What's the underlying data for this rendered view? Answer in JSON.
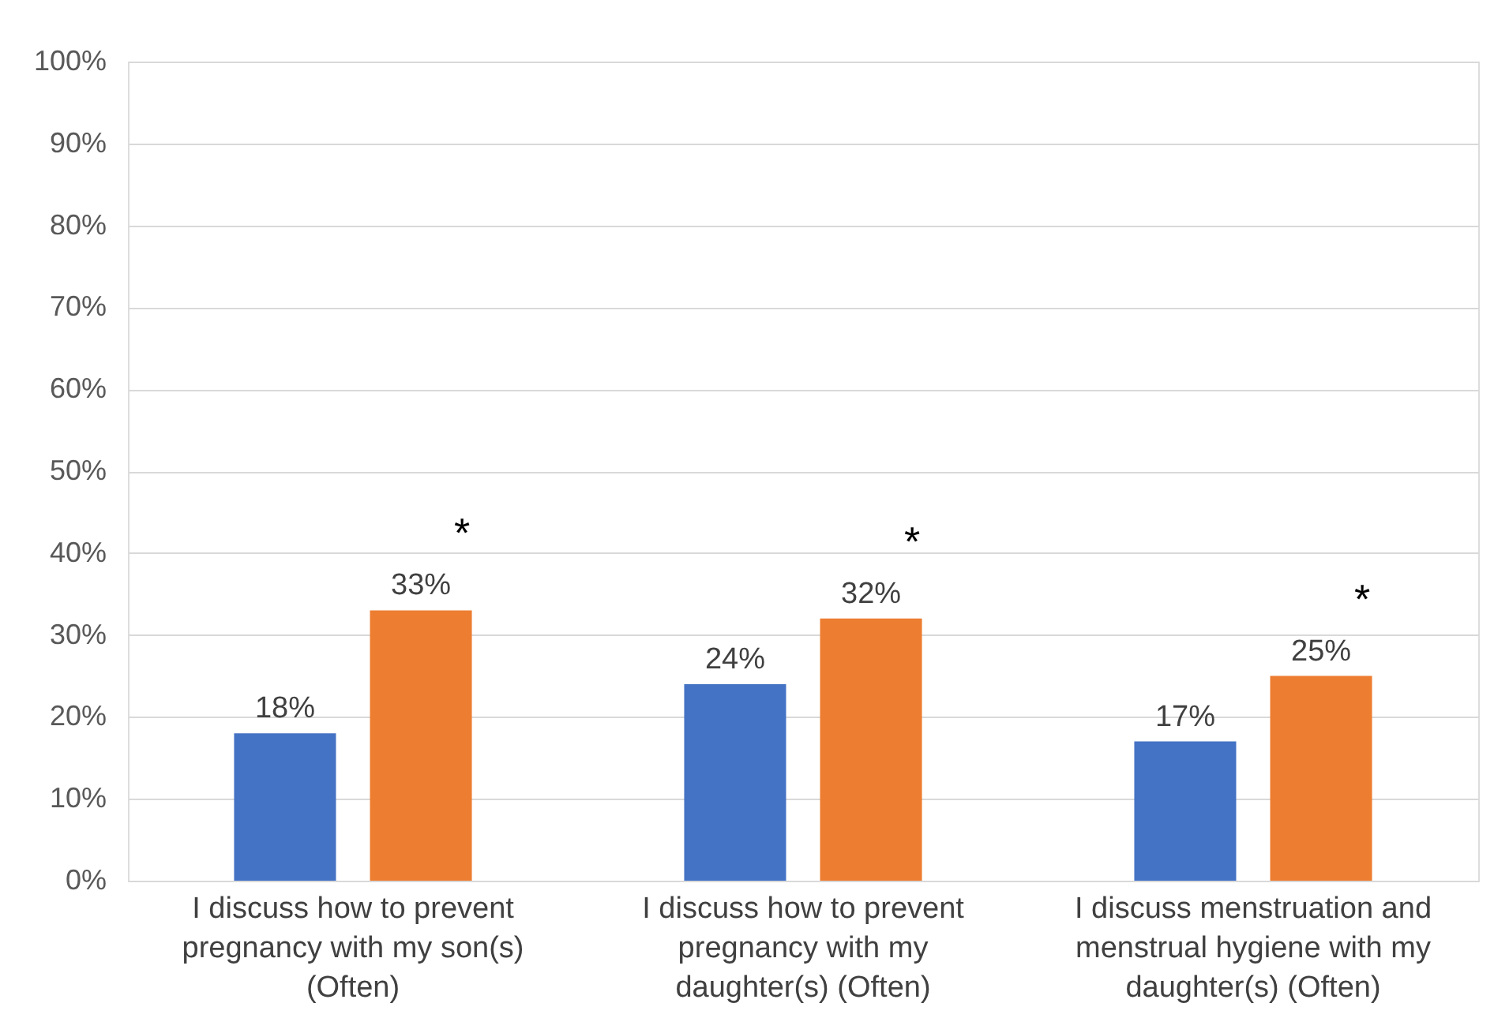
{
  "chart_data": {
    "type": "bar",
    "categories": [
      "I discuss how to prevent pregnancy with my son(s) (Often)",
      "I discuss how to prevent pregnancy with my daughter(s) (Often)",
      "I discuss menstruation and menstrual hygiene with my daughter(s) (Often)"
    ],
    "series": [
      {
        "color": "#4472c4",
        "values": [
          18,
          24,
          17
        ]
      },
      {
        "color": "#ed7d31",
        "values": [
          33,
          32,
          25
        ]
      }
    ],
    "ylim": [
      0,
      100
    ],
    "yticks": [
      {
        "value": 0,
        "label": "0%"
      },
      {
        "value": 10,
        "label": "10%"
      },
      {
        "value": 20,
        "label": "20%"
      },
      {
        "value": 30,
        "label": "30%"
      },
      {
        "value": 40,
        "label": "40%"
      },
      {
        "value": 50,
        "label": "50%"
      },
      {
        "value": 60,
        "label": "60%"
      },
      {
        "value": 70,
        "label": "70%"
      },
      {
        "value": 80,
        "label": "80%"
      },
      {
        "value": 90,
        "label": "90%"
      },
      {
        "value": 100,
        "label": "100%"
      }
    ],
    "value_labels": [
      [
        "18%",
        "24%",
        "17%"
      ],
      [
        "33%",
        "32%",
        "25%"
      ]
    ],
    "annotations": [
      "*",
      "*",
      "*"
    ],
    "grid": "y",
    "legend": false
  }
}
